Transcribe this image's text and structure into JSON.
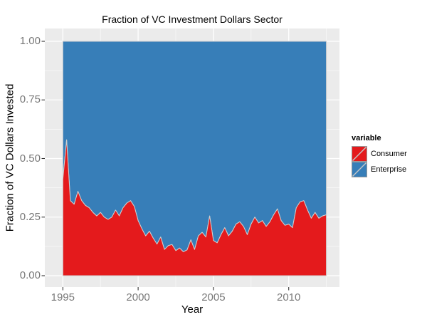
{
  "title": "Fraction of VC Investment Dollars Sector",
  "legend": {
    "title": "variable",
    "items": [
      {
        "label": "Consumer",
        "color": "#E41A1C"
      },
      {
        "label": "Enterprise",
        "color": "#377EB8"
      }
    ]
  },
  "axes": {
    "x_title": "Year",
    "y_title": "Fraction of VC Dollars Invested"
  },
  "colors": {
    "consumer": "#E41A1C",
    "enterprise": "#377EB8",
    "panel_background": "#EBEBEB",
    "gridline": "#FFFFFF",
    "area_outline": "#CFCFCF",
    "tick_mark": "#333333",
    "tick_label": "#787878",
    "legend_key_border": "#9A9A9A",
    "legend_key_slash": "#C6C6C6"
  },
  "chart_data": {
    "type": "area",
    "stacked": true,
    "normalized_total": 1,
    "title": "Fraction of VC Investment Dollars Sector",
    "xlabel": "Year",
    "ylabel": "Fraction of VC Dollars Invested",
    "legend_title": "variable",
    "legend_position": "right",
    "grid": true,
    "xlim": [
      1994.15,
      2013.35
    ],
    "ylim": [
      -0.05,
      1.05
    ],
    "x_ticks": [
      {
        "label": "1995",
        "value": 1995
      },
      {
        "label": "2000",
        "value": 2000
      },
      {
        "label": "2005",
        "value": 2005
      },
      {
        "label": "2010",
        "value": 2010
      }
    ],
    "y_ticks": [
      {
        "label": "1.00",
        "value": 1.0
      },
      {
        "label": "0.75",
        "value": 0.75
      },
      {
        "label": "0.50",
        "value": 0.5
      },
      {
        "label": "0.25",
        "value": 0.25
      },
      {
        "label": "0.00",
        "value": 0.0
      }
    ],
    "x_minor_ticks": [
      1997.5,
      2002.5,
      2007.5,
      2012.5
    ],
    "y_minor_ticks": [
      0.125,
      0.375,
      0.625,
      0.875
    ],
    "x": [
      1995,
      1995.25,
      1995.5,
      1995.75,
      1996,
      1996.25,
      1996.5,
      1996.75,
      1997,
      1997.25,
      1997.5,
      1997.75,
      1998,
      1998.25,
      1998.5,
      1998.75,
      1999,
      1999.25,
      1999.5,
      1999.75,
      2000,
      2000.25,
      2000.5,
      2000.75,
      2001,
      2001.25,
      2001.5,
      2001.75,
      2002,
      2002.25,
      2002.5,
      2002.75,
      2003,
      2003.25,
      2003.5,
      2003.75,
      2004,
      2004.25,
      2004.5,
      2004.75,
      2005,
      2005.25,
      2005.5,
      2005.75,
      2006,
      2006.25,
      2006.5,
      2006.75,
      2007,
      2007.25,
      2007.5,
      2007.75,
      2008,
      2008.25,
      2008.5,
      2008.75,
      2009,
      2009.25,
      2009.5,
      2009.75,
      2010,
      2010.25,
      2010.5,
      2010.75,
      2011,
      2011.25,
      2011.5,
      2011.75,
      2012,
      2012.25,
      2012.5
    ],
    "series": [
      {
        "name": "Consumer",
        "color": "#E41A1C",
        "values": [
          0.41,
          0.58,
          0.32,
          0.305,
          0.36,
          0.32,
          0.3,
          0.29,
          0.27,
          0.255,
          0.27,
          0.25,
          0.24,
          0.25,
          0.28,
          0.255,
          0.29,
          0.31,
          0.32,
          0.295,
          0.235,
          0.2,
          0.17,
          0.19,
          0.16,
          0.135,
          0.165,
          0.112,
          0.128,
          0.133,
          0.107,
          0.118,
          0.102,
          0.11,
          0.153,
          0.112,
          0.17,
          0.185,
          0.165,
          0.255,
          0.15,
          0.14,
          0.175,
          0.205,
          0.17,
          0.19,
          0.22,
          0.23,
          0.21,
          0.175,
          0.22,
          0.25,
          0.225,
          0.235,
          0.21,
          0.23,
          0.26,
          0.285,
          0.235,
          0.215,
          0.22,
          0.205,
          0.29,
          0.315,
          0.32,
          0.28,
          0.245,
          0.27,
          0.245,
          0.255,
          0.26
        ]
      },
      {
        "name": "Enterprise",
        "color": "#377EB8",
        "values": [
          0.59,
          0.42,
          0.68,
          0.695,
          0.64,
          0.68,
          0.7,
          0.71,
          0.73,
          0.745,
          0.73,
          0.75,
          0.76,
          0.75,
          0.72,
          0.745,
          0.71,
          0.69,
          0.68,
          0.705,
          0.765,
          0.8,
          0.83,
          0.81,
          0.84,
          0.865,
          0.835,
          0.888,
          0.872,
          0.867,
          0.893,
          0.882,
          0.898,
          0.89,
          0.847,
          0.888,
          0.83,
          0.815,
          0.835,
          0.745,
          0.85,
          0.86,
          0.825,
          0.795,
          0.83,
          0.81,
          0.78,
          0.77,
          0.79,
          0.825,
          0.78,
          0.75,
          0.775,
          0.765,
          0.79,
          0.77,
          0.74,
          0.715,
          0.765,
          0.785,
          0.78,
          0.795,
          0.71,
          0.685,
          0.68,
          0.72,
          0.755,
          0.73,
          0.755,
          0.745,
          0.74
        ]
      }
    ]
  }
}
